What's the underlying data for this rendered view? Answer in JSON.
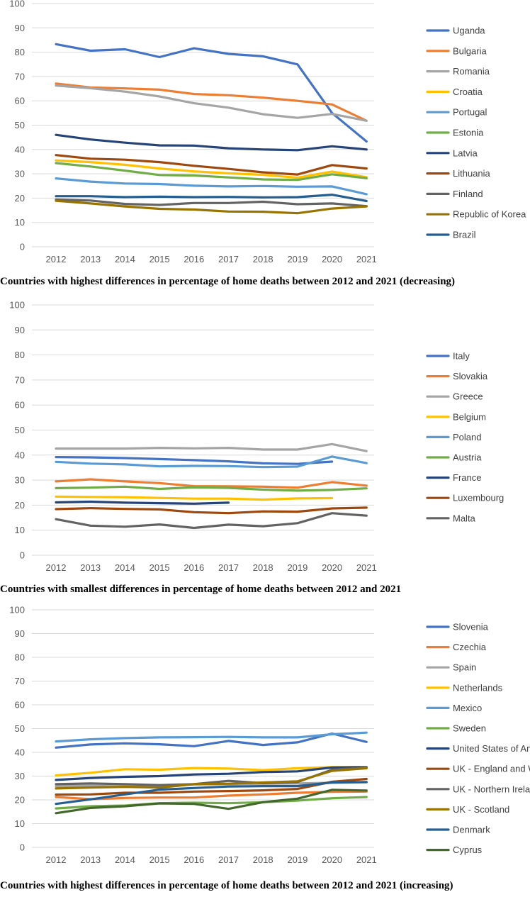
{
  "colors": [
    "#4472C4",
    "#ED7D31",
    "#A5A5A5",
    "#FFC000",
    "#5B9BD5",
    "#70AD47",
    "#264478",
    "#9E480E",
    "#636363",
    "#997300",
    "#255E91",
    "#43682B"
  ],
  "chart_data": [
    {
      "type": "line",
      "title": "Countries with highest differences in percentage of home deaths between 2012 and 2021 (decreasing)",
      "x": [
        "2012",
        "2013",
        "2014",
        "2015",
        "2016",
        "2017",
        "2018",
        "2019",
        "2020",
        "2021"
      ],
      "ylim": [
        0,
        100
      ],
      "yticks": [
        0,
        10,
        20,
        30,
        40,
        50,
        60,
        70,
        80,
        90,
        100
      ],
      "grid": true,
      "legend": "right",
      "series": [
        {
          "name": "Uganda",
          "values": [
            83.3,
            80.6,
            81.2,
            78.0,
            81.6,
            79.3,
            78.3,
            75.0,
            55.0,
            43.3
          ]
        },
        {
          "name": "Bulgaria",
          "values": [
            67.1,
            65.5,
            65.1,
            64.6,
            62.8,
            62.3,
            61.3,
            60.0,
            58.5,
            51.8
          ]
        },
        {
          "name": "Romania",
          "values": [
            66.3,
            65.2,
            63.8,
            61.8,
            59.0,
            57.2,
            54.5,
            53.0,
            54.6,
            51.8
          ]
        },
        {
          "name": "Croatia",
          "values": [
            35.5,
            34.8,
            33.7,
            32.2,
            31.0,
            30.2,
            29.6,
            28.4,
            30.9,
            28.6
          ]
        },
        {
          "name": "Portugal",
          "values": [
            28.1,
            26.8,
            26.0,
            25.8,
            25.1,
            24.8,
            25.0,
            24.7,
            24.8,
            21.6
          ]
        },
        {
          "name": "Estonia",
          "values": [
            34.4,
            33.0,
            31.3,
            29.5,
            29.3,
            28.5,
            27.7,
            27.5,
            29.8,
            28.2
          ]
        },
        {
          "name": "Latvia",
          "values": [
            46.0,
            44.1,
            42.8,
            41.7,
            41.6,
            40.5,
            40.0,
            39.7,
            41.3,
            40.0
          ]
        },
        {
          "name": "Lithuania",
          "values": [
            37.7,
            36.2,
            35.8,
            34.8,
            33.3,
            32.0,
            30.6,
            29.7,
            33.6,
            32.2
          ]
        },
        {
          "name": "Finland",
          "values": [
            19.4,
            19.0,
            17.6,
            17.2,
            18.0,
            18.0,
            18.5,
            17.5,
            17.8,
            16.7
          ]
        },
        {
          "name": "Republic of Korea",
          "values": [
            18.9,
            17.8,
            16.6,
            15.6,
            15.3,
            14.5,
            14.4,
            13.8,
            15.7,
            16.6
          ]
        },
        {
          "name": "Brazil",
          "values": [
            20.8,
            20.8,
            20.4,
            20.6,
            20.4,
            20.5,
            20.3,
            20.4,
            21.4,
            18.8
          ]
        }
      ]
    },
    {
      "type": "line",
      "title": "Countries with smallest differences in percentage of home deaths between 2012 and 2021",
      "x": [
        "2012",
        "2013",
        "2014",
        "2015",
        "2016",
        "2017",
        "2018",
        "2019",
        "2020",
        "2021"
      ],
      "ylim": [
        0,
        100
      ],
      "yticks": [
        0,
        10,
        20,
        30,
        40,
        50,
        60,
        70,
        80,
        90,
        100
      ],
      "grid": true,
      "legend": "right",
      "series": [
        {
          "name": "Italy",
          "values": [
            39.2,
            39.1,
            38.8,
            38.4,
            38.0,
            37.5,
            36.7,
            36.5,
            37.4,
            null
          ]
        },
        {
          "name": "Slovakia",
          "values": [
            29.5,
            30.3,
            29.5,
            28.8,
            27.6,
            27.5,
            27.4,
            27.0,
            29.2,
            27.8
          ]
        },
        {
          "name": "Greece",
          "values": [
            42.6,
            42.6,
            42.6,
            42.9,
            42.7,
            42.9,
            42.2,
            42.2,
            44.4,
            41.6
          ]
        },
        {
          "name": "Belgium",
          "values": [
            23.4,
            23.3,
            23.2,
            22.9,
            22.6,
            22.6,
            22.2,
            22.7,
            22.8,
            null
          ]
        },
        {
          "name": "Poland",
          "values": [
            37.3,
            36.6,
            36.3,
            35.5,
            35.7,
            35.6,
            35.2,
            35.4,
            39.4,
            36.8
          ]
        },
        {
          "name": "Austria",
          "values": [
            26.8,
            27.0,
            27.4,
            26.5,
            27.1,
            26.9,
            26.2,
            25.8,
            26.1,
            26.7
          ]
        },
        {
          "name": "France",
          "values": [
            21.1,
            21.4,
            21.0,
            20.8,
            20.6,
            21.0,
            null,
            null,
            null,
            null
          ]
        },
        {
          "name": "Luxembourg",
          "values": [
            18.4,
            18.8,
            18.5,
            18.3,
            17.2,
            16.8,
            17.5,
            17.4,
            18.7,
            19.0
          ]
        },
        {
          "name": "Malta",
          "values": [
            14.4,
            11.8,
            11.4,
            12.3,
            10.9,
            12.2,
            11.6,
            12.8,
            16.8,
            15.8
          ]
        }
      ]
    },
    {
      "type": "line",
      "title": "Countries with highest differences in percentage of home deaths between 2012 and 2021 (increasing)",
      "x": [
        "2012",
        "2013",
        "2014",
        "2015",
        "2016",
        "2017",
        "2018",
        "2019",
        "2020",
        "2021"
      ],
      "ylim": [
        0,
        100
      ],
      "yticks": [
        0,
        10,
        20,
        30,
        40,
        50,
        60,
        70,
        80,
        90,
        100
      ],
      "grid": true,
      "legend": "right",
      "series": [
        {
          "name": "Slovenia",
          "values": [
            42.0,
            43.3,
            43.8,
            43.4,
            42.6,
            44.8,
            43.1,
            44.2,
            47.9,
            44.4
          ]
        },
        {
          "name": "Czechia",
          "values": [
            21.2,
            20.3,
            20.8,
            21.0,
            21.0,
            21.8,
            22.3,
            23.0,
            23.4,
            23.5
          ]
        },
        {
          "name": "Spain",
          "values": [
            25.7,
            25.9,
            25.6,
            25.4,
            26.5,
            26.6,
            26.8,
            26.9,
            27.2,
            27.4
          ]
        },
        {
          "name": "Netherlands",
          "values": [
            30.3,
            31.4,
            32.9,
            32.7,
            33.4,
            33.2,
            32.5,
            33.3,
            33.8,
            33.8
          ]
        },
        {
          "name": "Mexico",
          "values": [
            44.6,
            45.5,
            46.0,
            46.3,
            46.4,
            46.5,
            46.3,
            46.3,
            47.6,
            48.3
          ]
        },
        {
          "name": "Sweden",
          "values": [
            16.4,
            17.3,
            17.6,
            18.6,
            18.8,
            18.6,
            19.0,
            19.7,
            20.7,
            21.2
          ]
        },
        {
          "name": "United States of America",
          "values": [
            28.4,
            29.2,
            29.7,
            30.0,
            30.7,
            31.0,
            31.7,
            32.0,
            33.6,
            33.8
          ]
        },
        {
          "name": "UK - England and Wales",
          "values": [
            22.2,
            22.3,
            23.0,
            23.0,
            23.5,
            23.7,
            24.0,
            24.6,
            27.6,
            28.8
          ]
        },
        {
          "name": "UK - Northern Ireland",
          "values": [
            26.6,
            26.9,
            26.6,
            26.2,
            26.6,
            28.0,
            27.0,
            27.5,
            32.7,
            33.6
          ]
        },
        {
          "name": "UK - Scotland",
          "values": [
            24.8,
            25.2,
            25.5,
            25.2,
            26.6,
            26.8,
            27.3,
            27.8,
            32.2,
            33.3
          ]
        },
        {
          "name": "Denmark",
          "values": [
            18.3,
            20.2,
            22.3,
            24.3,
            25.0,
            25.6,
            25.8,
            25.8,
            27.3,
            27.5
          ]
        },
        {
          "name": "Cyprus",
          "values": [
            14.4,
            16.6,
            17.3,
            18.5,
            18.3,
            16.2,
            19.0,
            20.5,
            24.2,
            23.9
          ]
        }
      ]
    }
  ]
}
